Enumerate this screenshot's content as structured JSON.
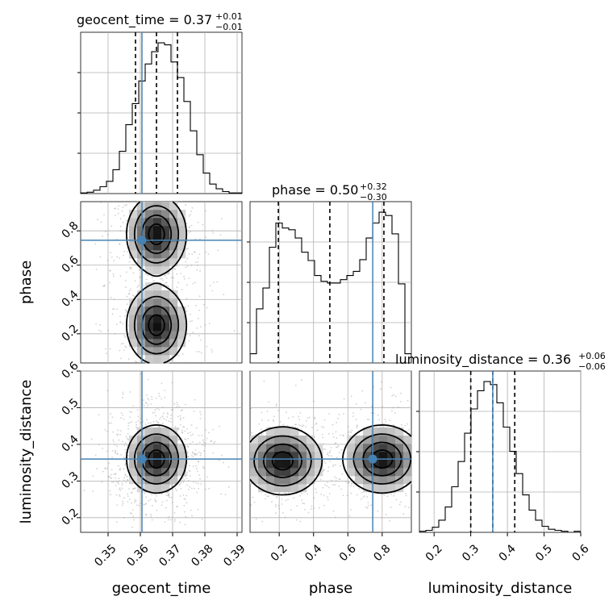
{
  "chart_data": {
    "type": "corner",
    "parameters": [
      "geocent_time",
      "phase",
      "luminosity_distance"
    ],
    "truth_color": "#4682b4",
    "truths": {
      "geocent_time": 0.3605,
      "phase": 0.745,
      "luminosity_distance": 0.36
    },
    "titles": {
      "geocent_time": {
        "text": "geocent_time = 0.37",
        "plus": "+0.01",
        "minus": "−0.01"
      },
      "phase": {
        "text": "phase = 0.50",
        "plus": "+0.32",
        "minus": "−0.30"
      },
      "luminosity_distance": {
        "text": "luminosity_distance = 0.36",
        "plus": "+0.06",
        "minus": "−0.06"
      }
    },
    "axes": {
      "geocent_time": {
        "label": "geocent_time",
        "range": [
          0.3415,
          0.3915
        ],
        "ticks": [
          0.35,
          0.36,
          0.37,
          0.38,
          0.39
        ],
        "tick_labels": [
          "0.35",
          "0.36",
          "0.37",
          "0.38",
          "0.39"
        ],
        "quantiles": [
          0.3585,
          0.365,
          0.3715
        ]
      },
      "phase": {
        "label": "phase",
        "range": [
          0.03,
          0.97
        ],
        "ticks": [
          0.2,
          0.4,
          0.6,
          0.8
        ],
        "tick_labels": [
          "0.2",
          "0.4",
          "0.6",
          "0.8"
        ],
        "quantiles": [
          0.195,
          0.495,
          0.81
        ]
      },
      "luminosity_distance": {
        "label": "luminosity_distance",
        "range": [
          0.16,
          0.6
        ],
        "ticks": [
          0.2,
          0.3,
          0.4,
          0.5,
          0.6
        ],
        "tick_labels": [
          "0.2",
          "0.3",
          "0.4",
          "0.5",
          "0.6"
        ],
        "quantiles": [
          0.3,
          0.36,
          0.42
        ]
      }
    },
    "histograms": {
      "geocent_time": {
        "edges": [
          0.3415,
          0.3435,
          0.3455,
          0.3475,
          0.3495,
          0.3515,
          0.3535,
          0.3555,
          0.3575,
          0.3595,
          0.3615,
          0.3635,
          0.3655,
          0.3675,
          0.3695,
          0.3715,
          0.3735,
          0.3755,
          0.3775,
          0.3795,
          0.3815,
          0.3835,
          0.3855,
          0.3875,
          0.3895,
          0.3915
        ],
        "counts": [
          1,
          2,
          5,
          10,
          18,
          35,
          62,
          101,
          132,
          165,
          190,
          208,
          221,
          218,
          193,
          170,
          135,
          92,
          57,
          30,
          14,
          7,
          3,
          1,
          1
        ]
      },
      "phase": {
        "edges": [
          0.03,
          0.0676,
          0.1052,
          0.1428,
          0.1804,
          0.218,
          0.2556,
          0.2932,
          0.3308,
          0.3684,
          0.406,
          0.4436,
          0.4812,
          0.5188,
          0.5564,
          0.594,
          0.6316,
          0.6692,
          0.7068,
          0.7444,
          0.782,
          0.8196,
          0.8572,
          0.8948,
          0.9324,
          0.97
        ],
        "counts": [
          11,
          65,
          90,
          139,
          168,
          162,
          160,
          150,
          133,
          123,
          105,
          98,
          96,
          96,
          100,
          105,
          110,
          124,
          150,
          168,
          181,
          177,
          155,
          95,
          11
        ]
      },
      "luminosity_distance": {
        "edges": [
          0.16,
          0.1776,
          0.1952,
          0.2128,
          0.2304,
          0.248,
          0.2656,
          0.2832,
          0.3008,
          0.3184,
          0.336,
          0.3536,
          0.3712,
          0.3888,
          0.4064,
          0.424,
          0.4416,
          0.4592,
          0.4768,
          0.4944,
          0.512,
          0.5296,
          0.5472,
          0.5648,
          0.5824,
          0.6
        ],
        "counts": [
          1,
          2,
          5,
          12,
          25,
          45,
          70,
          98,
          122,
          140,
          149,
          146,
          128,
          104,
          80,
          58,
          37,
          22,
          12,
          6,
          3,
          2,
          1,
          0,
          1
        ]
      }
    },
    "pairs": [
      {
        "x": "geocent_time",
        "y": "phase",
        "peaks": [
          [
            0.365,
            0.78
          ],
          [
            0.365,
            0.25
          ]
        ]
      },
      {
        "x": "geocent_time",
        "y": "luminosity_distance",
        "peaks": [
          [
            0.365,
            0.36
          ]
        ]
      },
      {
        "x": "phase",
        "y": "luminosity_distance",
        "peaks": [
          [
            0.22,
            0.355
          ],
          [
            0.8,
            0.36
          ]
        ]
      }
    ]
  }
}
